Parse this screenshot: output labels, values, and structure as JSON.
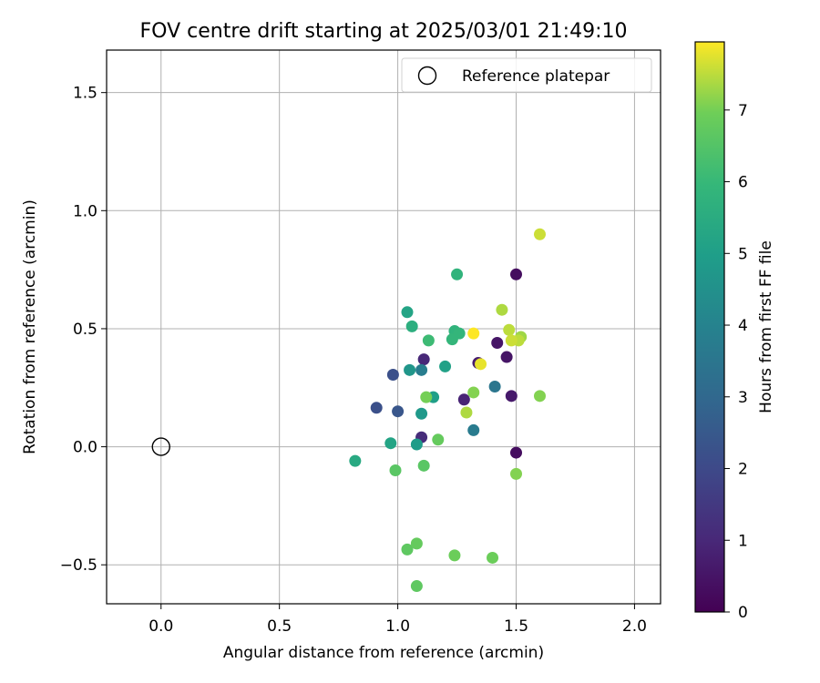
{
  "chart_data": {
    "type": "scatter",
    "title": "FOV centre drift starting at 2025/03/01 21:49:10",
    "xlabel": "Angular distance from reference (arcmin)",
    "ylabel": "Rotation from reference (arcmin)",
    "xlim": [
      -0.23,
      2.11
    ],
    "ylim": [
      -0.665,
      1.68
    ],
    "xticks": [
      0.0,
      0.5,
      1.0,
      1.5,
      2.0
    ],
    "xtick_labels": [
      "0.0",
      "0.5",
      "1.0",
      "1.5",
      "2.0"
    ],
    "yticks": [
      -0.5,
      0.0,
      0.5,
      1.0,
      1.5
    ],
    "ytick_labels": [
      "−0.5",
      "0.0",
      "0.5",
      "1.0",
      "1.5"
    ],
    "grid": true,
    "legend": {
      "placement": "top-right",
      "entries": [
        {
          "name": "Reference platepar",
          "marker": "hollow-circle"
        }
      ]
    },
    "reference_point": {
      "x": 0.0,
      "y": 0.0
    },
    "colorbar": {
      "label": "Hours from first FF file",
      "colormap": "viridis",
      "range": [
        0,
        7.95
      ],
      "ticks": [
        0,
        1,
        2,
        3,
        4,
        5,
        6,
        7
      ],
      "tick_labels": [
        "0",
        "1",
        "2",
        "3",
        "4",
        "5",
        "6",
        "7"
      ]
    },
    "points": [
      {
        "x": 1.5,
        "y": 0.73,
        "h": 0.3
      },
      {
        "x": 1.5,
        "y": -0.025,
        "h": 0.3
      },
      {
        "x": 1.42,
        "y": 0.44,
        "h": 0.5
      },
      {
        "x": 1.46,
        "y": 0.38,
        "h": 0.5
      },
      {
        "x": 1.48,
        "y": 0.215,
        "h": 0.6
      },
      {
        "x": 1.34,
        "y": 0.355,
        "h": 0.7
      },
      {
        "x": 1.28,
        "y": 0.2,
        "h": 0.9
      },
      {
        "x": 1.11,
        "y": 0.37,
        "h": 1.0
      },
      {
        "x": 1.1,
        "y": 0.04,
        "h": 1.1
      },
      {
        "x": 0.98,
        "y": 0.305,
        "h": 2.2
      },
      {
        "x": 0.91,
        "y": 0.165,
        "h": 2.2
      },
      {
        "x": 1.0,
        "y": 0.15,
        "h": 2.4
      },
      {
        "x": 1.41,
        "y": 0.255,
        "h": 3.5
      },
      {
        "x": 1.32,
        "y": 0.07,
        "h": 3.7
      },
      {
        "x": 1.1,
        "y": 0.325,
        "h": 3.8
      },
      {
        "x": 1.05,
        "y": 0.325,
        "h": 4.7
      },
      {
        "x": 1.1,
        "y": 0.14,
        "h": 4.8
      },
      {
        "x": 1.08,
        "y": 0.01,
        "h": 4.9
      },
      {
        "x": 1.15,
        "y": 0.21,
        "h": 5.0
      },
      {
        "x": 1.2,
        "y": 0.34,
        "h": 5.1
      },
      {
        "x": 1.04,
        "y": 0.57,
        "h": 5.2
      },
      {
        "x": 0.97,
        "y": 0.015,
        "h": 5.2
      },
      {
        "x": 0.82,
        "y": -0.06,
        "h": 5.4
      },
      {
        "x": 1.06,
        "y": 0.51,
        "h": 5.6
      },
      {
        "x": 1.25,
        "y": 0.73,
        "h": 5.8
      },
      {
        "x": 1.24,
        "y": 0.49,
        "h": 5.8
      },
      {
        "x": 1.26,
        "y": 0.48,
        "h": 5.9
      },
      {
        "x": 1.23,
        "y": 0.455,
        "h": 5.9
      },
      {
        "x": 1.13,
        "y": 0.45,
        "h": 6.1
      },
      {
        "x": 0.99,
        "y": -0.1,
        "h": 6.6
      },
      {
        "x": 1.11,
        "y": -0.08,
        "h": 6.6
      },
      {
        "x": 1.17,
        "y": 0.03,
        "h": 6.8
      },
      {
        "x": 1.12,
        "y": 0.21,
        "h": 7.0
      },
      {
        "x": 1.04,
        "y": -0.435,
        "h": 6.7
      },
      {
        "x": 1.08,
        "y": -0.41,
        "h": 6.8
      },
      {
        "x": 1.08,
        "y": -0.59,
        "h": 6.7
      },
      {
        "x": 1.24,
        "y": -0.46,
        "h": 6.9
      },
      {
        "x": 1.4,
        "y": -0.47,
        "h": 6.9
      },
      {
        "x": 1.32,
        "y": 0.23,
        "h": 7.1
      },
      {
        "x": 1.29,
        "y": 0.145,
        "h": 7.4
      },
      {
        "x": 1.5,
        "y": -0.115,
        "h": 7.1
      },
      {
        "x": 1.6,
        "y": 0.215,
        "h": 7.1
      },
      {
        "x": 1.44,
        "y": 0.58,
        "h": 7.4
      },
      {
        "x": 1.47,
        "y": 0.495,
        "h": 7.5
      },
      {
        "x": 1.52,
        "y": 0.465,
        "h": 7.3
      },
      {
        "x": 1.51,
        "y": 0.45,
        "h": 7.5
      },
      {
        "x": 1.48,
        "y": 0.45,
        "h": 7.6
      },
      {
        "x": 1.6,
        "y": 0.9,
        "h": 7.6
      },
      {
        "x": 1.35,
        "y": 0.35,
        "h": 7.8
      },
      {
        "x": 1.32,
        "y": 0.48,
        "h": 7.95
      }
    ]
  }
}
